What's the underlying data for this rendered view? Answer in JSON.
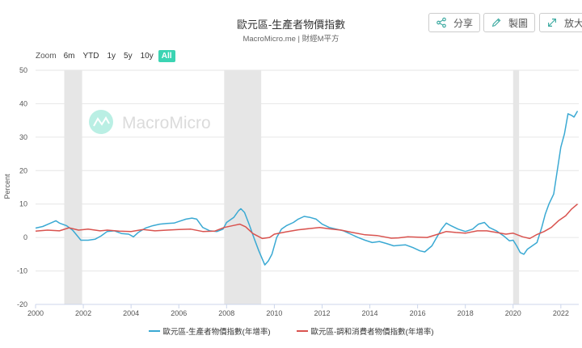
{
  "header": {
    "title": "歐元區-生產者物價指數",
    "subtitle": "MacroMicro.me | 財經M平方"
  },
  "toolbar": {
    "share_label": "分享",
    "chart_label": "製圖",
    "expand_label": "放大"
  },
  "zoom": {
    "label": "Zoom",
    "options": [
      "6m",
      "YTD",
      "1y",
      "5y",
      "10y",
      "All"
    ],
    "active": "All"
  },
  "watermark": "MacroMicro",
  "colors": {
    "ppi": "#3aa9d3",
    "hicp": "#d9534f",
    "recession": "#e6e6e6",
    "grid": "#e6e6e6"
  },
  "chart_data": {
    "type": "line",
    "title": "歐元區-生產者物價指數",
    "ylabel": "Percent",
    "ylim": [
      -20,
      50
    ],
    "yticks": [
      -20,
      -10,
      0,
      10,
      20,
      30,
      40,
      50
    ],
    "xlim": [
      2000,
      2022.75
    ],
    "xticks": [
      2000,
      2002,
      2004,
      2006,
      2008,
      2010,
      2012,
      2014,
      2016,
      2018,
      2020,
      2022
    ],
    "recessions": [
      [
        2001.2,
        2001.95
      ],
      [
        2007.9,
        2009.45
      ],
      [
        2020.0,
        2020.25
      ]
    ],
    "series": [
      {
        "name": "歐元區-生產者物價指數(年增率)",
        "points": [
          [
            2000.0,
            2.8
          ],
          [
            2000.3,
            3.3
          ],
          [
            2000.6,
            4.2
          ],
          [
            2000.85,
            5.0
          ],
          [
            2001.0,
            4.3
          ],
          [
            2001.3,
            3.5
          ],
          [
            2001.55,
            2.2
          ],
          [
            2001.75,
            0.5
          ],
          [
            2001.9,
            -0.8
          ],
          [
            2002.2,
            -0.8
          ],
          [
            2002.5,
            -0.5
          ],
          [
            2002.75,
            0.5
          ],
          [
            2003.0,
            1.8
          ],
          [
            2003.3,
            2.0
          ],
          [
            2003.6,
            1.2
          ],
          [
            2003.9,
            1.0
          ],
          [
            2004.1,
            0.2
          ],
          [
            2004.3,
            1.5
          ],
          [
            2004.6,
            2.8
          ],
          [
            2004.9,
            3.5
          ],
          [
            2005.2,
            4.0
          ],
          [
            2005.5,
            4.2
          ],
          [
            2005.8,
            4.3
          ],
          [
            2006.0,
            4.8
          ],
          [
            2006.3,
            5.5
          ],
          [
            2006.55,
            5.8
          ],
          [
            2006.75,
            5.5
          ],
          [
            2007.0,
            3.0
          ],
          [
            2007.3,
            2.0
          ],
          [
            2007.6,
            1.8
          ],
          [
            2007.85,
            2.5
          ],
          [
            2008.0,
            4.5
          ],
          [
            2008.3,
            6.0
          ],
          [
            2008.5,
            8.0
          ],
          [
            2008.6,
            8.6
          ],
          [
            2008.75,
            7.5
          ],
          [
            2008.95,
            3.8
          ],
          [
            2009.15,
            -0.2
          ],
          [
            2009.35,
            -4.0
          ],
          [
            2009.5,
            -6.5
          ],
          [
            2009.6,
            -8.2
          ],
          [
            2009.75,
            -7.0
          ],
          [
            2009.9,
            -5.0
          ],
          [
            2010.1,
            0.0
          ],
          [
            2010.3,
            2.5
          ],
          [
            2010.5,
            3.5
          ],
          [
            2010.8,
            4.5
          ],
          [
            2011.0,
            5.5
          ],
          [
            2011.25,
            6.3
          ],
          [
            2011.5,
            6.0
          ],
          [
            2011.75,
            5.5
          ],
          [
            2012.0,
            4.0
          ],
          [
            2012.3,
            3.0
          ],
          [
            2012.6,
            2.5
          ],
          [
            2012.9,
            2.0
          ],
          [
            2013.2,
            1.0
          ],
          [
            2013.5,
            0.0
          ],
          [
            2013.8,
            -0.8
          ],
          [
            2014.1,
            -1.5
          ],
          [
            2014.4,
            -1.2
          ],
          [
            2014.7,
            -1.8
          ],
          [
            2015.0,
            -2.5
          ],
          [
            2015.25,
            -2.3
          ],
          [
            2015.5,
            -2.2
          ],
          [
            2015.8,
            -3.0
          ],
          [
            2016.1,
            -4.0
          ],
          [
            2016.3,
            -4.3
          ],
          [
            2016.6,
            -2.5
          ],
          [
            2016.8,
            0.0
          ],
          [
            2017.0,
            2.5
          ],
          [
            2017.2,
            4.3
          ],
          [
            2017.4,
            3.5
          ],
          [
            2017.7,
            2.5
          ],
          [
            2018.0,
            1.8
          ],
          [
            2018.3,
            2.5
          ],
          [
            2018.55,
            4.0
          ],
          [
            2018.8,
            4.5
          ],
          [
            2019.0,
            3.0
          ],
          [
            2019.3,
            2.0
          ],
          [
            2019.6,
            0.5
          ],
          [
            2019.85,
            -1.0
          ],
          [
            2020.0,
            -0.8
          ],
          [
            2020.15,
            -2.5
          ],
          [
            2020.3,
            -4.5
          ],
          [
            2020.45,
            -5.0
          ],
          [
            2020.6,
            -3.5
          ],
          [
            2020.8,
            -2.5
          ],
          [
            2021.0,
            -1.5
          ],
          [
            2021.2,
            3.0
          ],
          [
            2021.35,
            7.0
          ],
          [
            2021.5,
            10.0
          ],
          [
            2021.7,
            13.0
          ],
          [
            2021.85,
            20.0
          ],
          [
            2022.0,
            27.0
          ],
          [
            2022.15,
            31.0
          ],
          [
            2022.3,
            37.0
          ],
          [
            2022.45,
            36.5
          ],
          [
            2022.55,
            36.0
          ],
          [
            2022.7,
            37.8
          ]
        ]
      },
      {
        "name": "歐元區-調和消費者物價指數(年增率)",
        "points": [
          [
            2000.0,
            1.9
          ],
          [
            2000.5,
            2.2
          ],
          [
            2001.0,
            2.0
          ],
          [
            2001.4,
            2.9
          ],
          [
            2001.8,
            2.2
          ],
          [
            2002.2,
            2.5
          ],
          [
            2002.7,
            2.0
          ],
          [
            2003.0,
            2.2
          ],
          [
            2003.5,
            1.9
          ],
          [
            2004.0,
            1.8
          ],
          [
            2004.5,
            2.4
          ],
          [
            2005.0,
            2.0
          ],
          [
            2005.5,
            2.2
          ],
          [
            2006.0,
            2.4
          ],
          [
            2006.5,
            2.5
          ],
          [
            2007.0,
            1.8
          ],
          [
            2007.5,
            1.9
          ],
          [
            2007.9,
            3.0
          ],
          [
            2008.3,
            3.6
          ],
          [
            2008.55,
            4.0
          ],
          [
            2008.8,
            3.2
          ],
          [
            2009.1,
            1.2
          ],
          [
            2009.5,
            -0.3
          ],
          [
            2009.8,
            0.0
          ],
          [
            2010.0,
            1.0
          ],
          [
            2010.5,
            1.7
          ],
          [
            2011.0,
            2.3
          ],
          [
            2011.5,
            2.7
          ],
          [
            2011.9,
            3.0
          ],
          [
            2012.3,
            2.6
          ],
          [
            2012.8,
            2.2
          ],
          [
            2013.2,
            1.6
          ],
          [
            2013.8,
            0.8
          ],
          [
            2014.3,
            0.6
          ],
          [
            2014.9,
            -0.2
          ],
          [
            2015.2,
            -0.1
          ],
          [
            2015.6,
            0.2
          ],
          [
            2016.0,
            0.1
          ],
          [
            2016.4,
            0.0
          ],
          [
            2016.9,
            1.1
          ],
          [
            2017.2,
            1.8
          ],
          [
            2017.6,
            1.5
          ],
          [
            2018.0,
            1.3
          ],
          [
            2018.5,
            2.0
          ],
          [
            2018.9,
            2.0
          ],
          [
            2019.3,
            1.5
          ],
          [
            2019.7,
            1.0
          ],
          [
            2020.0,
            1.3
          ],
          [
            2020.4,
            0.2
          ],
          [
            2020.7,
            -0.3
          ],
          [
            2021.0,
            0.9
          ],
          [
            2021.3,
            1.8
          ],
          [
            2021.6,
            3.0
          ],
          [
            2021.9,
            5.0
          ],
          [
            2022.2,
            6.5
          ],
          [
            2022.45,
            8.5
          ],
          [
            2022.7,
            10.0
          ]
        ]
      }
    ],
    "legend": [
      "歐元區-生產者物價指數(年增率)",
      "歐元區-調和消費者物價指數(年增率)"
    ]
  }
}
